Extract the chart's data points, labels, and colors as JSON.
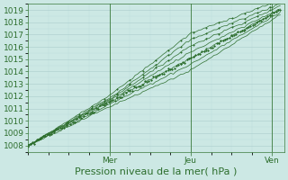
{
  "xlabel": "Pression niveau de la mer( hPa )",
  "bg_color": "#cce8e4",
  "plot_bg_color": "#cce8e4",
  "grid_color_major": "#aacccc",
  "grid_color_minor": "#bbdddd",
  "line_color": "#2d6e2d",
  "ylim": [
    1007.5,
    1019.5
  ],
  "yticks": [
    1008,
    1009,
    1010,
    1011,
    1012,
    1013,
    1014,
    1015,
    1016,
    1017,
    1018,
    1019
  ],
  "xlim": [
    0,
    6.3
  ],
  "xtick_positions": [
    2.0,
    4.0,
    6.0
  ],
  "xtick_labels": [
    "Mer",
    "Jeu",
    "Ven"
  ],
  "vline_positions": [
    2.0,
    4.0,
    6.0
  ],
  "xlabel_fontsize": 8,
  "tick_fontsize": 6.5
}
